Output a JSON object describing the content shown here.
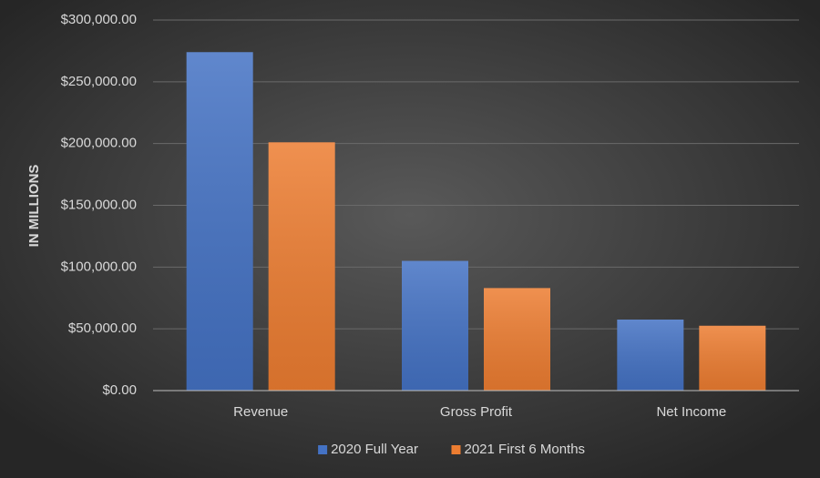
{
  "chart_data": {
    "type": "bar",
    "y_label": "IN MILLIONS",
    "categories": [
      "Revenue",
      "Gross Profit",
      "Net Income"
    ],
    "series": [
      {
        "name": "2020 Full Year",
        "color": "#4472c4",
        "values": [
          274000,
          105000,
          57500
        ]
      },
      {
        "name": "2021 First 6 Months",
        "color": "#ed7d31",
        "values": [
          201000,
          83000,
          52500
        ]
      }
    ],
    "ylim": [
      0,
      300000
    ],
    "yticks": [
      {
        "value": 0,
        "label": "$0.00"
      },
      {
        "value": 50000,
        "label": "$50,000.00"
      },
      {
        "value": 100000,
        "label": "$100,000.00"
      },
      {
        "value": 150000,
        "label": "$150,000.00"
      },
      {
        "value": 200000,
        "label": "$200,000.00"
      },
      {
        "value": 250000,
        "label": "$250,000.00"
      },
      {
        "value": 300000,
        "label": "$300,000.00"
      }
    ],
    "grid": true,
    "legend": "bottom"
  }
}
